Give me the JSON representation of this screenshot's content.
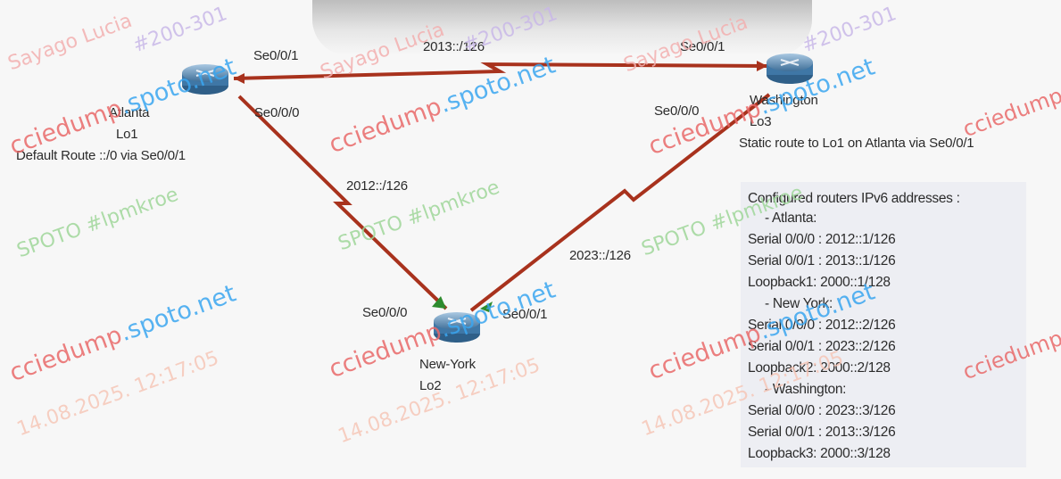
{
  "routers": {
    "atlanta": {
      "name": "Atlanta",
      "loopback": "Lo1",
      "note": "Default Route ::/0 via Se0/0/1",
      "if_a": "Se0/0/1",
      "if_b": "Se0/0/0"
    },
    "washington": {
      "name": "Washington",
      "loopback": "Lo3",
      "note": "Static route to Lo1 on Atlanta via Se0/0/1",
      "if_a": "Se0/0/1",
      "if_b": "Se0/0/0"
    },
    "newyork": {
      "name": "New-York",
      "loopback": "Lo2",
      "if_a": "Se0/0/0",
      "if_b": "Se0/0/1"
    }
  },
  "links": {
    "atl_was": "2013::/126",
    "atl_ny": "2012::/126",
    "ny_was": "2023::/126"
  },
  "info": {
    "title": "Configured routers IPv6 addresses :",
    "atlanta_header": "- Atlanta:",
    "atlanta": [
      "Serial 0/0/0 : 2012::1/126",
      "Serial 0/0/1 : 2013::1/126",
      "Loopback1: 2000::1/128"
    ],
    "newyork_header": "- New York:",
    "newyork": [
      "Serial 0/0/0 : 2012::2/126",
      "Serial 0/0/1  : 2023::2/126",
      "Loopback2: 2000::2/128"
    ],
    "washington_header": "- Washington:",
    "washington": [
      "Serial 0/0/0 : 2023::3/126",
      "Serial 0/0/1 : 2013::3/126",
      "Loopback3: 2000::3/128"
    ]
  },
  "watermarks": {
    "site_a": "ccie",
    "site_b": "dump",
    "site_c": ".spoto.net",
    "line1": "Sayago Lucia",
    "line2": "SPOTO #lpmkroe",
    "line3": "#200-301",
    "line4": "14.08.2025. 12:17:05"
  },
  "colors": {
    "link": "#a8321d",
    "router_body": "#3f77a6",
    "text": "#2b2b2b"
  }
}
